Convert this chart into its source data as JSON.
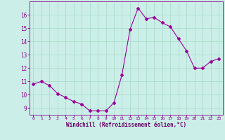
{
  "x": [
    0,
    1,
    2,
    3,
    4,
    5,
    6,
    7,
    8,
    9,
    10,
    11,
    12,
    13,
    14,
    15,
    16,
    17,
    18,
    19,
    20,
    21,
    22,
    23
  ],
  "y": [
    10.8,
    11.0,
    10.7,
    10.1,
    9.8,
    9.5,
    9.3,
    8.8,
    8.8,
    8.8,
    9.4,
    11.5,
    14.9,
    16.5,
    15.7,
    15.8,
    15.4,
    15.1,
    14.2,
    13.3,
    12.0,
    12.0,
    12.5,
    12.7
  ],
  "line_color": "#990099",
  "marker": "D",
  "marker_size": 2.0,
  "bg_color": "#cceee8",
  "grid_color": "#aaddcc",
  "xlabel": "Windchill (Refroidissement éolien,°C)",
  "xlabel_color": "#660066",
  "tick_color": "#880088",
  "ylim": [
    8.5,
    17.0
  ],
  "yticks": [
    9,
    10,
    11,
    12,
    13,
    14,
    15,
    16
  ],
  "xlim": [
    -0.5,
    23.5
  ],
  "xticks": [
    0,
    1,
    2,
    3,
    4,
    5,
    6,
    7,
    8,
    9,
    10,
    11,
    12,
    13,
    14,
    15,
    16,
    17,
    18,
    19,
    20,
    21,
    22,
    23
  ]
}
